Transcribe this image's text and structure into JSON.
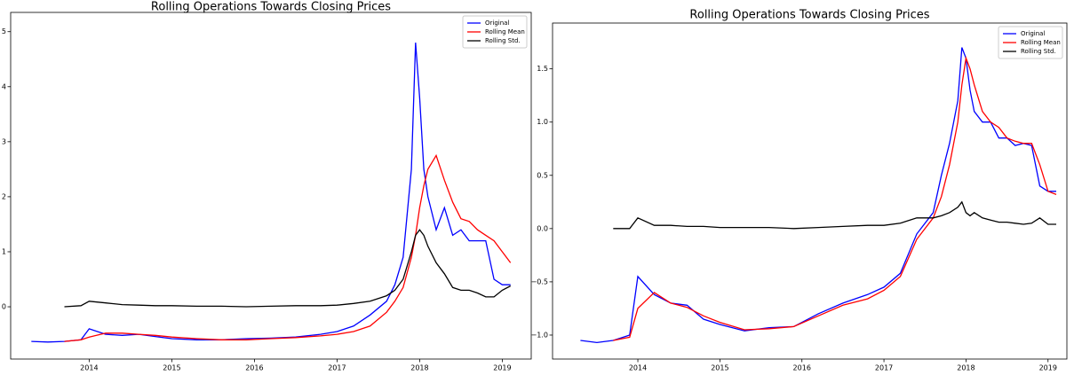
{
  "chart_data": [
    {
      "type": "line",
      "title": "Rolling Operations Towards Closing Prices",
      "x": [
        2013.3,
        2013.5,
        2013.7,
        2013.9,
        2014.0,
        2014.2,
        2014.4,
        2014.6,
        2014.8,
        2015.0,
        2015.3,
        2015.6,
        2015.9,
        2016.2,
        2016.5,
        2016.8,
        2017.0,
        2017.2,
        2017.4,
        2017.6,
        2017.7,
        2017.8,
        2017.9,
        2017.95,
        2018.0,
        2018.05,
        2018.1,
        2018.2,
        2018.3,
        2018.4,
        2018.5,
        2018.6,
        2018.7,
        2018.8,
        2018.9,
        2019.0,
        2019.1
      ],
      "series": [
        {
          "name": "Original",
          "color": "#0000ff",
          "values": [
            -0.63,
            -0.64,
            -0.63,
            -0.6,
            -0.4,
            -0.5,
            -0.52,
            -0.5,
            -0.54,
            -0.58,
            -0.6,
            -0.6,
            -0.58,
            -0.57,
            -0.55,
            -0.5,
            -0.45,
            -0.35,
            -0.15,
            0.1,
            0.4,
            0.9,
            2.5,
            4.8,
            3.8,
            2.5,
            2.0,
            1.4,
            1.8,
            1.3,
            1.4,
            1.2,
            1.2,
            1.2,
            0.5,
            0.4,
            0.4
          ]
        },
        {
          "name": "Rolling Mean",
          "color": "#ff0000",
          "values": [
            null,
            null,
            -0.63,
            -0.6,
            -0.55,
            -0.48,
            -0.48,
            -0.5,
            -0.52,
            -0.55,
            -0.58,
            -0.6,
            -0.6,
            -0.58,
            -0.56,
            -0.53,
            -0.5,
            -0.45,
            -0.35,
            -0.1,
            0.1,
            0.35,
            0.9,
            1.3,
            1.8,
            2.2,
            2.5,
            2.75,
            2.3,
            1.9,
            1.6,
            1.55,
            1.4,
            1.3,
            1.2,
            1.0,
            0.8
          ]
        },
        {
          "name": "Rolling Std.",
          "color": "#000000",
          "values": [
            null,
            null,
            0.0,
            0.02,
            0.1,
            0.07,
            0.04,
            0.03,
            0.02,
            0.02,
            0.01,
            0.01,
            0.0,
            0.01,
            0.02,
            0.02,
            0.03,
            0.06,
            0.1,
            0.2,
            0.3,
            0.5,
            1.0,
            1.3,
            1.4,
            1.3,
            1.1,
            0.8,
            0.6,
            0.35,
            0.3,
            0.3,
            0.25,
            0.18,
            0.18,
            0.3,
            0.38
          ]
        }
      ],
      "xlim": [
        2013.05,
        2019.35
      ],
      "xticks": [
        2014,
        2015,
        2016,
        2017,
        2018,
        2019
      ],
      "ylim": [
        -0.95,
        5.35
      ],
      "yticks": [
        0,
        1,
        2,
        3,
        4,
        5
      ],
      "legend": "upper right"
    },
    {
      "type": "line",
      "title": "Rolling Operations Towards Closing Prices",
      "x": [
        2013.3,
        2013.5,
        2013.7,
        2013.9,
        2014.0,
        2014.2,
        2014.4,
        2014.6,
        2014.8,
        2015.0,
        2015.3,
        2015.6,
        2015.9,
        2016.2,
        2016.5,
        2016.8,
        2017.0,
        2017.2,
        2017.4,
        2017.6,
        2017.7,
        2017.8,
        2017.9,
        2017.95,
        2018.0,
        2018.05,
        2018.1,
        2018.2,
        2018.3,
        2018.4,
        2018.5,
        2018.6,
        2018.7,
        2018.8,
        2018.9,
        2019.0,
        2019.1
      ],
      "series": [
        {
          "name": "Original",
          "color": "#0000ff",
          "values": [
            -1.05,
            -1.07,
            -1.05,
            -1.0,
            -0.45,
            -0.62,
            -0.7,
            -0.72,
            -0.85,
            -0.9,
            -0.96,
            -0.93,
            -0.92,
            -0.8,
            -0.7,
            -0.62,
            -0.55,
            -0.42,
            -0.05,
            0.15,
            0.5,
            0.8,
            1.2,
            1.7,
            1.6,
            1.3,
            1.1,
            1.0,
            1.0,
            0.85,
            0.85,
            0.78,
            0.8,
            0.78,
            0.4,
            0.35,
            0.35
          ]
        },
        {
          "name": "Rolling Mean",
          "color": "#ff0000",
          "values": [
            null,
            null,
            -1.05,
            -1.02,
            -0.75,
            -0.6,
            -0.7,
            -0.74,
            -0.82,
            -0.88,
            -0.95,
            -0.94,
            -0.92,
            -0.82,
            -0.72,
            -0.66,
            -0.58,
            -0.45,
            -0.1,
            0.1,
            0.3,
            0.6,
            1.0,
            1.35,
            1.6,
            1.5,
            1.35,
            1.1,
            1.0,
            0.95,
            0.85,
            0.82,
            0.8,
            0.8,
            0.6,
            0.35,
            0.32
          ]
        },
        {
          "name": "Rolling Std.",
          "color": "#000000",
          "values": [
            null,
            null,
            0.0,
            0.0,
            0.1,
            0.03,
            0.03,
            0.02,
            0.02,
            0.01,
            0.01,
            0.01,
            0.0,
            0.01,
            0.02,
            0.03,
            0.03,
            0.05,
            0.1,
            0.1,
            0.12,
            0.15,
            0.2,
            0.25,
            0.15,
            0.12,
            0.15,
            0.1,
            0.08,
            0.06,
            0.06,
            0.05,
            0.04,
            0.05,
            0.1,
            0.04,
            0.04
          ]
        }
      ],
      "xlim": [
        2012.96,
        2019.23
      ],
      "xticks": [
        2014,
        2015,
        2016,
        2017,
        2018,
        2019
      ],
      "ylim": [
        -1.225,
        1.93
      ],
      "yticks": [
        {
          "value": -1.0,
          "label": "−1.0"
        },
        {
          "value": -0.5,
          "label": "−0.5"
        },
        {
          "value": 0.0,
          "label": "0.0"
        },
        {
          "value": 0.5,
          "label": "0.5"
        },
        {
          "value": 1.0,
          "label": "1.0"
        },
        {
          "value": 1.5,
          "label": "1.5"
        }
      ],
      "legend": "upper right"
    }
  ]
}
